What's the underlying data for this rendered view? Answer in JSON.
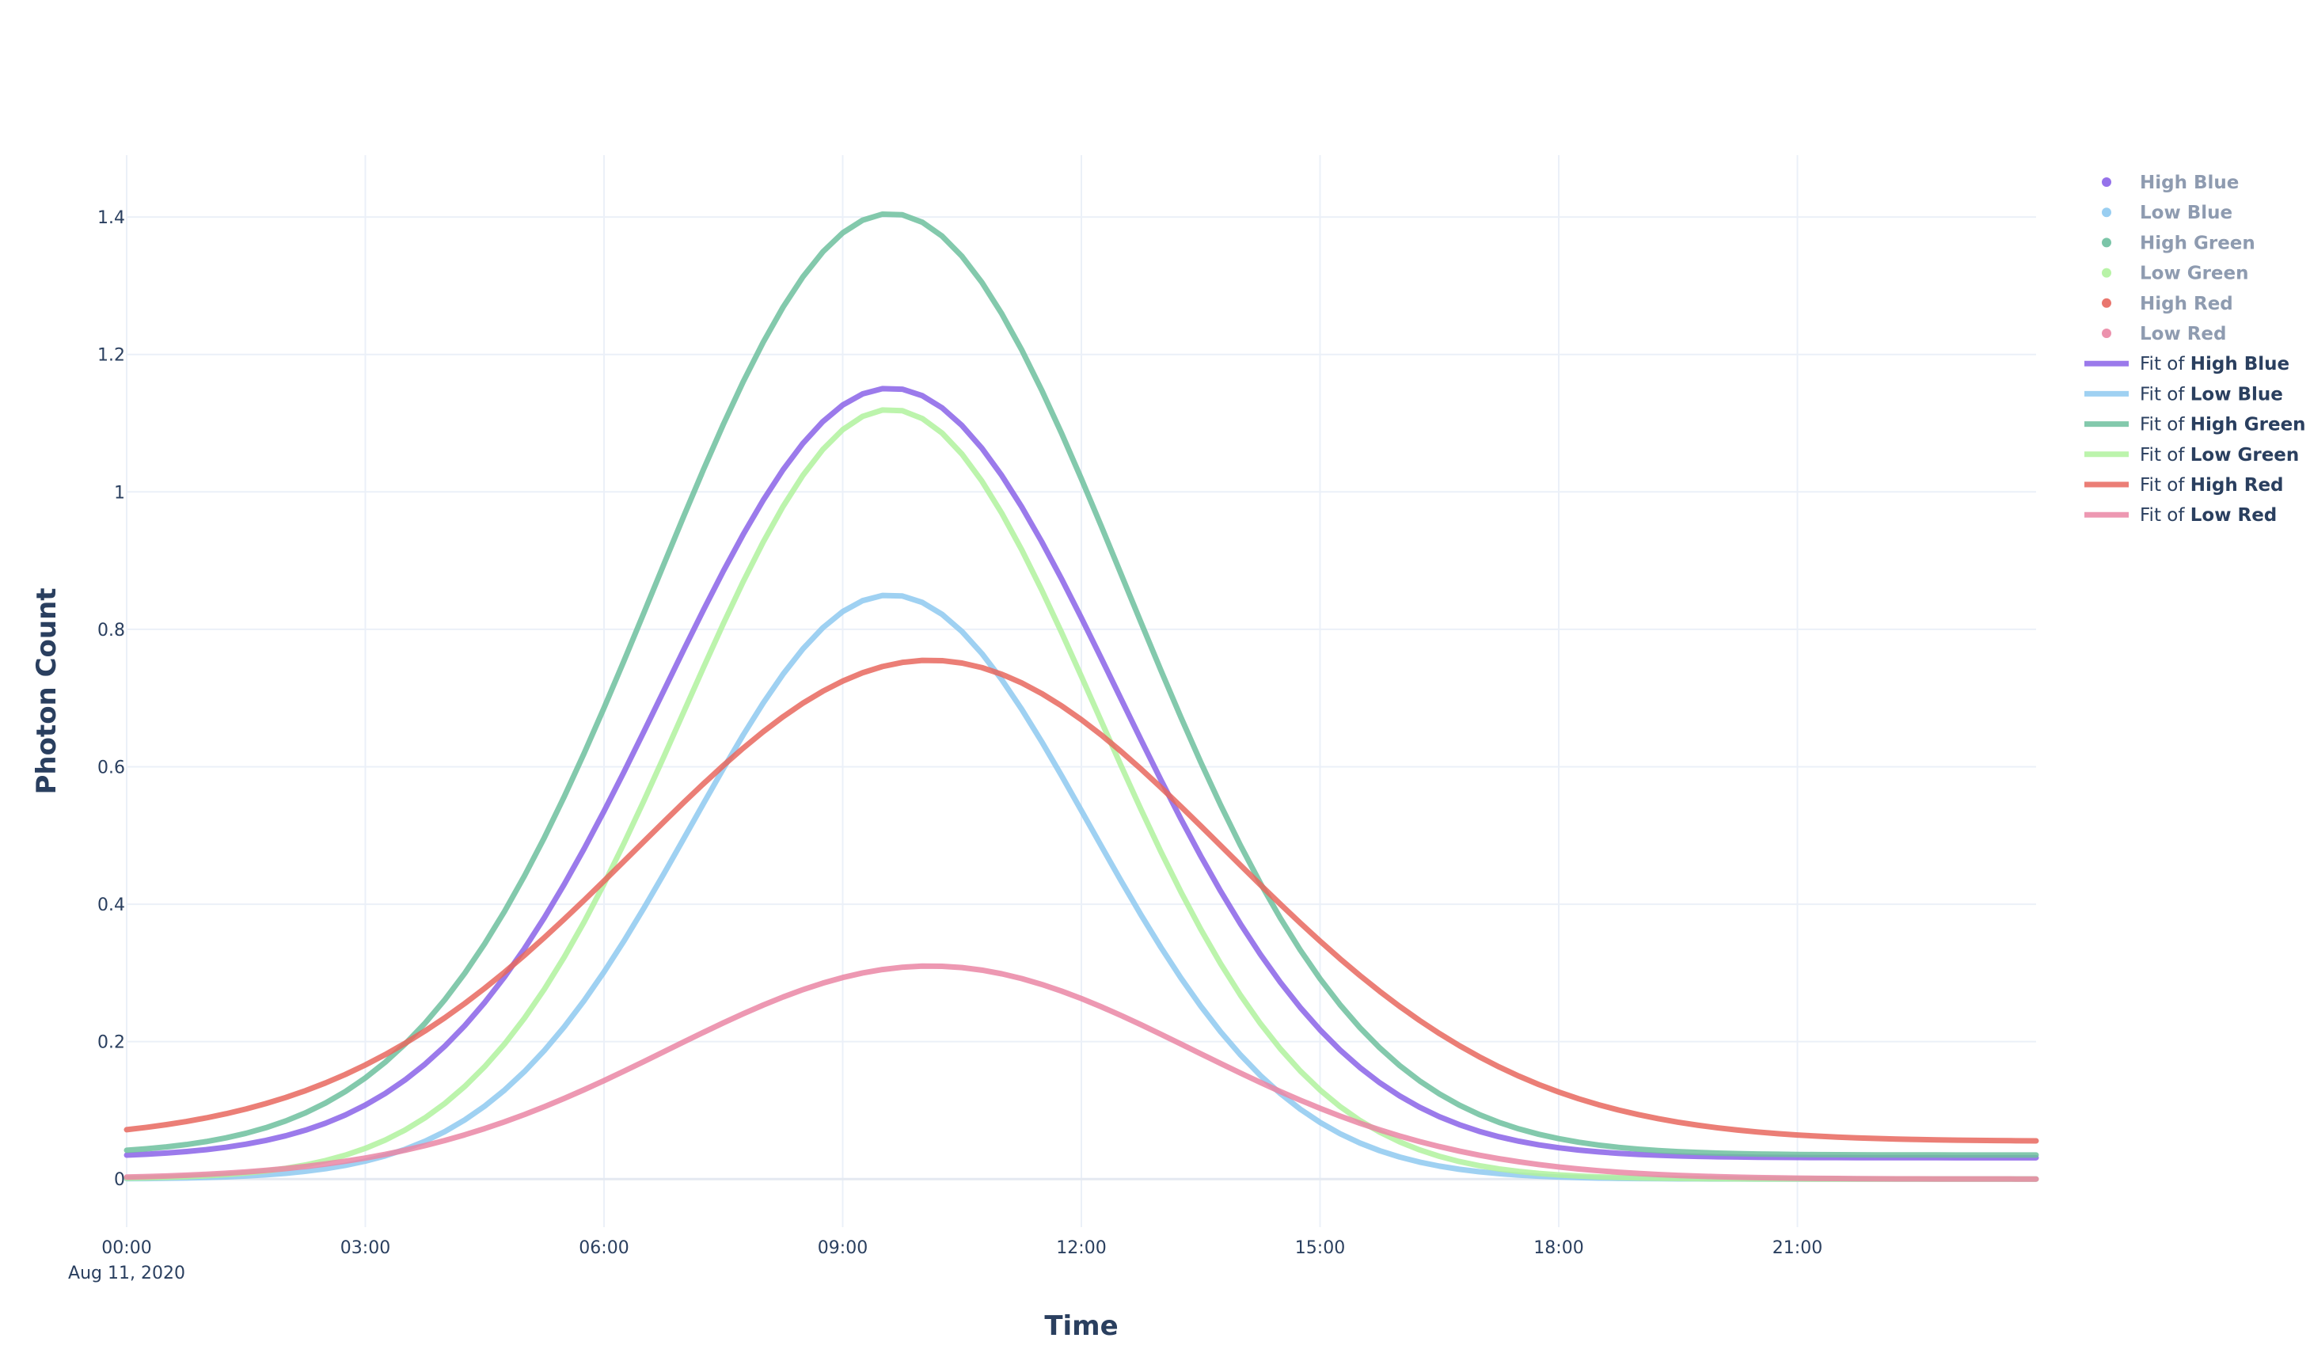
{
  "chart_data": {
    "type": "line",
    "title": "",
    "xlabel": "Time",
    "ylabel": "Photon Count",
    "x_ticks": [
      "00:00",
      "03:00",
      "06:00",
      "09:00",
      "12:00",
      "15:00",
      "18:00",
      "21:00"
    ],
    "x_tick_hours": [
      0,
      3,
      6,
      9,
      12,
      15,
      18,
      21
    ],
    "x_date_label": "Aug 11, 2020",
    "xlim_hours": [
      0,
      24
    ],
    "y_ticks": [
      "0",
      "0.2",
      "0.4",
      "0.6",
      "0.8",
      "1",
      "1.2",
      "1.4"
    ],
    "y_tick_values": [
      0,
      0.2,
      0.4,
      0.6,
      0.8,
      1,
      1.2,
      1.4
    ],
    "ylim": [
      -0.07,
      1.49
    ],
    "grid": true,
    "legend_position": "right",
    "marker_series": [
      {
        "label": "High Blue",
        "color": "#8a63e8"
      },
      {
        "label": "Low Blue",
        "color": "#8ec9f0"
      },
      {
        "label": "High Green",
        "color": "#6dbf9e"
      },
      {
        "label": "Low Green",
        "color": "#b0f29d"
      },
      {
        "label": "High Red",
        "color": "#e7675e"
      },
      {
        "label": "Low Red",
        "color": "#ea86a4"
      }
    ],
    "series": [
      {
        "prefix": "Fit of",
        "name": "High Blue",
        "color": "#8a63e8",
        "amplitude": 1.12,
        "center_hours": 9.6,
        "width_hours": 2.85,
        "baseline": 0.031
      },
      {
        "prefix": "Fit of",
        "name": "Low Blue",
        "color": "#8ec9f0",
        "amplitude": 0.85,
        "center_hours": 9.6,
        "width_hours": 2.5,
        "baseline": 0.0
      },
      {
        "prefix": "Fit of",
        "name": "High Green",
        "color": "#6dbf9e",
        "amplitude": 1.37,
        "center_hours": 9.6,
        "width_hours": 2.95,
        "baseline": 0.035
      },
      {
        "prefix": "Fit of",
        "name": "Low Green",
        "color": "#b0f29d",
        "amplitude": 1.12,
        "center_hours": 9.6,
        "width_hours": 2.6,
        "baseline": 0.0
      },
      {
        "prefix": "Fit of",
        "name": "High Red",
        "color": "#e7675e",
        "amplitude": 0.7,
        "center_hours": 10.1,
        "width_hours": 3.7,
        "baseline": 0.055
      },
      {
        "prefix": "Fit of",
        "name": "Low Red",
        "color": "#ea86a4",
        "amplitude": 0.31,
        "center_hours": 10.1,
        "width_hours": 3.3,
        "baseline": 0.0
      }
    ]
  }
}
